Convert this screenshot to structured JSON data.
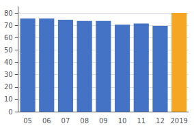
{
  "chart_data": {
    "type": "bar",
    "categories": [
      "05",
      "06",
      "07",
      "08",
      "09",
      "10",
      "11",
      "12",
      "2019"
    ],
    "values": [
      75.5,
      75.5,
      74.5,
      73.5,
      73.5,
      70.5,
      71.5,
      69.5,
      80
    ],
    "colors": [
      "#4472c4",
      "#4472c4",
      "#4472c4",
      "#4472c4",
      "#4472c4",
      "#4472c4",
      "#4472c4",
      "#4472c4",
      "#f5a623"
    ],
    "ylim": [
      0,
      85
    ],
    "yticks": [
      0,
      10,
      20,
      30,
      40,
      50,
      60,
      70,
      80
    ],
    "grid": true
  }
}
